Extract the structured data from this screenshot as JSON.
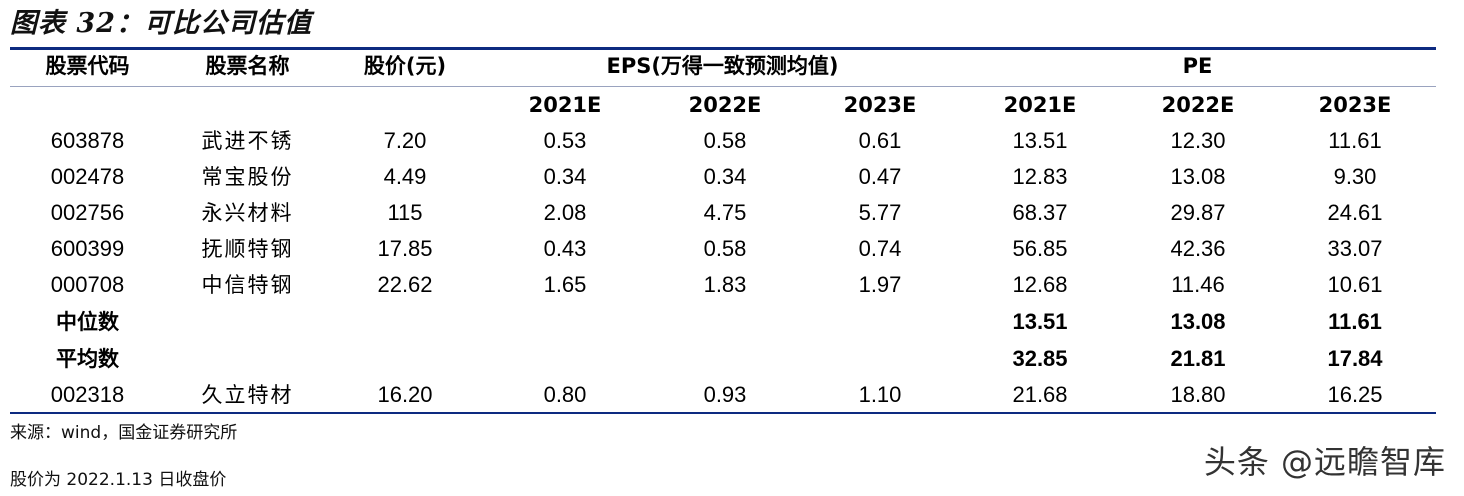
{
  "title": "图表 32：可比公司估值",
  "headers": {
    "code": "股票代码",
    "name": "股票名称",
    "price": "股价(元)",
    "eps": "EPS(万得一致预测均值)",
    "pe": "PE",
    "years": [
      "2021E",
      "2022E",
      "2023E"
    ]
  },
  "rows": [
    {
      "code": "603878",
      "name": "武进不锈",
      "price": "7.20",
      "eps": [
        "0.53",
        "0.58",
        "0.61"
      ],
      "pe": [
        "13.51",
        "12.30",
        "11.61"
      ]
    },
    {
      "code": "002478",
      "name": "常宝股份",
      "price": "4.49",
      "eps": [
        "0.34",
        "0.34",
        "0.47"
      ],
      "pe": [
        "12.83",
        "13.08",
        "9.30"
      ]
    },
    {
      "code": "002756",
      "name": "永兴材料",
      "price": "115",
      "eps": [
        "2.08",
        "4.75",
        "5.77"
      ],
      "pe": [
        "68.37",
        "29.87",
        "24.61"
      ]
    },
    {
      "code": "600399",
      "name": "抚顺特钢",
      "price": "17.85",
      "eps": [
        "0.43",
        "0.58",
        "0.74"
      ],
      "pe": [
        "56.85",
        "42.36",
        "33.07"
      ]
    },
    {
      "code": "000708",
      "name": "中信特钢",
      "price": "22.62",
      "eps": [
        "1.65",
        "1.83",
        "1.97"
      ],
      "pe": [
        "12.68",
        "11.46",
        "10.61"
      ]
    }
  ],
  "median": {
    "label": "中位数",
    "pe": [
      "13.51",
      "13.08",
      "11.61"
    ]
  },
  "mean": {
    "label": "平均数",
    "pe": [
      "32.85",
      "21.81",
      "17.84"
    ]
  },
  "target": {
    "code": "002318",
    "name": "久立特材",
    "price": "16.20",
    "eps": [
      "0.80",
      "0.93",
      "1.10"
    ],
    "pe": [
      "21.68",
      "18.80",
      "16.25"
    ]
  },
  "notes": {
    "source": "来源：wind，国金证券研究所",
    "price_note": "股价为 2022.1.13 日收盘价"
  },
  "watermark": "头条 @远瞻智库"
}
